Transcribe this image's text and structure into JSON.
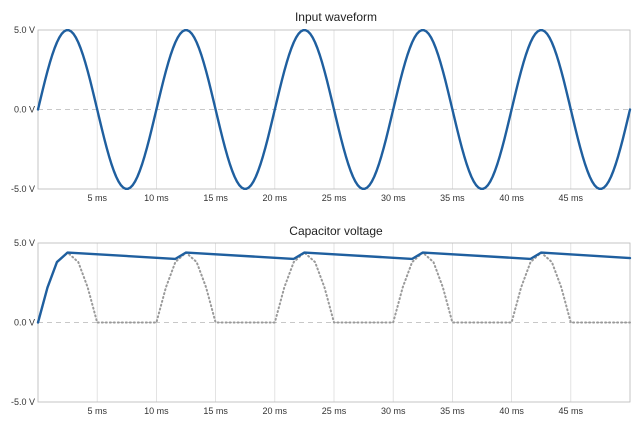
{
  "colors": {
    "signal": "#1f5f9f",
    "rectified": "#9a9a9a",
    "grid": "#dcdcdc",
    "zero": "#c8c8c8",
    "frame": "#b8b8b8"
  },
  "chart_data": [
    {
      "type": "line",
      "title": "Input waveform",
      "xlim": [
        0,
        50
      ],
      "ylim": [
        -5,
        5
      ],
      "x_ticks": [
        5,
        10,
        15,
        20,
        25,
        30,
        35,
        40,
        45
      ],
      "x_tick_labels": [
        "5 ms",
        "10 ms",
        "15 ms",
        "20 ms",
        "25 ms",
        "30 ms",
        "35 ms",
        "40 ms",
        "45 ms"
      ],
      "y_ticks": [
        5,
        0,
        -5
      ],
      "y_tick_labels": [
        "5.0 V",
        "0.0 V",
        "-5.0 V"
      ],
      "series": [
        {
          "style": "solid",
          "color": "#1f5f9f",
          "x": [
            0,
            1.25,
            2.5,
            3.75,
            5,
            6.25,
            7.5,
            8.75,
            10,
            11.25,
            12.5,
            13.75,
            15,
            16.25,
            17.5,
            18.75,
            20,
            21.25,
            22.5,
            23.75,
            25,
            26.25,
            27.5,
            28.75,
            30,
            31.25,
            32.5,
            33.75,
            35,
            36.25,
            37.5,
            38.75,
            40,
            41.25,
            42.5,
            43.75,
            45,
            46.25,
            47.5,
            48.75,
            50
          ],
          "y": [
            0,
            3.54,
            5,
            3.54,
            0,
            -3.54,
            -5,
            -3.54,
            0,
            3.54,
            5,
            3.54,
            0,
            -3.54,
            -5,
            -3.54,
            0,
            3.54,
            5,
            3.54,
            0,
            -3.54,
            -5,
            -3.54,
            0,
            3.54,
            5,
            3.54,
            0,
            -3.54,
            -5,
            -3.54,
            0,
            3.54,
            5,
            3.54,
            0,
            -3.54,
            -5,
            -3.54,
            0
          ]
        }
      ]
    },
    {
      "type": "line",
      "title": "Capacitor voltage",
      "xlim": [
        0,
        50
      ],
      "ylim": [
        -5,
        5
      ],
      "x_ticks": [
        5,
        10,
        15,
        20,
        25,
        30,
        35,
        40,
        45
      ],
      "x_tick_labels": [
        "5 ms",
        "10 ms",
        "15 ms",
        "20 ms",
        "25 ms",
        "30 ms",
        "35 ms",
        "40 ms",
        "45 ms"
      ],
      "y_ticks": [
        5,
        0,
        -5
      ],
      "y_tick_labels": [
        "5.0 V",
        "0.0 V",
        "-5.0 V"
      ],
      "series": [
        {
          "style": "dotted",
          "color": "#9a9a9a",
          "x": [
            0,
            0.8,
            1.6,
            2.5,
            3.4,
            4.2,
            5,
            10,
            10.8,
            11.6,
            12.5,
            13.4,
            14.2,
            15,
            20,
            20.8,
            21.6,
            22.5,
            23.4,
            24.2,
            25,
            30,
            30.8,
            31.6,
            32.5,
            33.4,
            34.2,
            35,
            40,
            40.8,
            41.6,
            42.5,
            43.4,
            44.2,
            45,
            50
          ],
          "y": [
            0,
            2.2,
            3.8,
            4.4,
            3.8,
            2.2,
            0,
            0,
            2.2,
            3.8,
            4.4,
            3.8,
            2.2,
            0,
            0,
            2.2,
            3.8,
            4.4,
            3.8,
            2.2,
            0,
            0,
            2.2,
            3.8,
            4.4,
            3.8,
            2.2,
            0,
            0,
            2.2,
            3.8,
            4.4,
            3.8,
            2.2,
            0,
            0
          ]
        },
        {
          "style": "solid",
          "color": "#1f5f9f",
          "x": [
            0,
            0.8,
            1.6,
            2.5,
            11.6,
            12.5,
            21.6,
            22.5,
            31.6,
            32.5,
            41.6,
            42.5,
            50
          ],
          "y": [
            0,
            2.2,
            3.8,
            4.4,
            4.0,
            4.4,
            4.0,
            4.4,
            4.0,
            4.4,
            4.0,
            4.4,
            4.05
          ]
        }
      ]
    }
  ]
}
